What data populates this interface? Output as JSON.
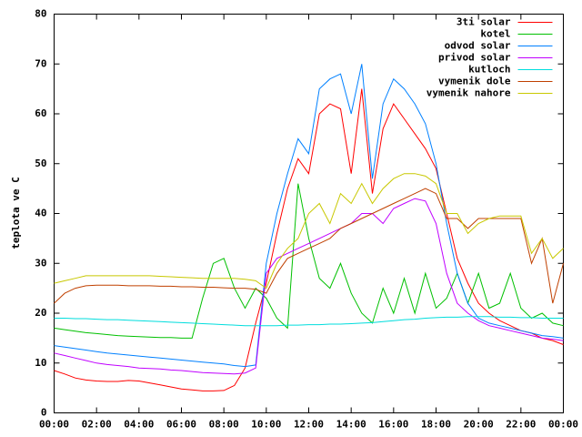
{
  "chart_data": {
    "type": "line",
    "ylabel": "teplota ve C",
    "x": [
      0,
      0.5,
      1,
      1.5,
      2,
      2.5,
      3,
      3.5,
      4,
      4.5,
      5,
      5.5,
      6,
      6.5,
      7,
      7.5,
      8,
      8.5,
      9,
      9.5,
      10,
      10.5,
      11,
      11.5,
      12,
      12.5,
      13,
      13.5,
      14,
      14.5,
      15,
      15.5,
      16,
      16.5,
      17,
      17.5,
      18,
      18.5,
      19,
      19.5,
      20,
      20.5,
      21,
      21.5,
      22,
      22.5,
      23,
      23.5,
      24
    ],
    "xlim": [
      0,
      24
    ],
    "xticks": [
      {
        "value": 0,
        "label": "00:00"
      },
      {
        "value": 2,
        "label": "02:00"
      },
      {
        "value": 4,
        "label": "04:00"
      },
      {
        "value": 6,
        "label": "06:00"
      },
      {
        "value": 8,
        "label": "08:00"
      },
      {
        "value": 10,
        "label": "10:00"
      },
      {
        "value": 12,
        "label": "12:00"
      },
      {
        "value": 14,
        "label": "14:00"
      },
      {
        "value": 16,
        "label": "16:00"
      },
      {
        "value": 18,
        "label": "18:00"
      },
      {
        "value": 20,
        "label": "20:00"
      },
      {
        "value": 22,
        "label": "22:00"
      },
      {
        "value": 24,
        "label": "00:00"
      }
    ],
    "ylim": [
      0,
      80
    ],
    "yticks": [
      0,
      10,
      20,
      30,
      40,
      50,
      60,
      70,
      80
    ],
    "legend": "top-right",
    "series": [
      {
        "name": "3ti solar",
        "color": "#ff0000",
        "values": [
          8.5,
          7.8,
          7,
          6.6,
          6.4,
          6.3,
          6.3,
          6.5,
          6.4,
          6,
          5.6,
          5.2,
          4.8,
          4.6,
          4.4,
          4.4,
          4.5,
          5.5,
          9,
          18,
          26,
          36,
          45,
          51,
          48,
          60,
          62,
          61,
          48,
          65,
          44,
          57,
          62,
          59,
          56,
          53,
          49,
          40,
          31,
          26,
          22,
          20,
          18.5,
          17.5,
          16.5,
          16,
          15,
          14.5,
          13.7
        ]
      },
      {
        "name": "kotel",
        "color": "#00c000",
        "values": [
          17,
          16.7,
          16.4,
          16.1,
          15.9,
          15.7,
          15.5,
          15.4,
          15.3,
          15.2,
          15.1,
          15.1,
          15,
          15,
          23,
          30,
          31,
          25,
          21,
          25,
          23,
          19,
          17,
          46,
          35,
          27,
          25,
          30,
          24,
          20,
          18,
          25,
          20,
          27,
          20,
          28,
          21,
          23,
          28,
          22,
          28,
          21,
          22,
          28,
          21,
          19,
          20,
          18,
          17.5
        ]
      },
      {
        "name": "odvod solar",
        "color": "#0080ff",
        "values": [
          13.5,
          13.2,
          12.9,
          12.6,
          12.3,
          12,
          11.8,
          11.6,
          11.4,
          11.2,
          11,
          10.8,
          10.6,
          10.4,
          10.2,
          10,
          9.8,
          9.5,
          9.3,
          9.6,
          30,
          40,
          48,
          55,
          52,
          65,
          67,
          68,
          60,
          70,
          47,
          62,
          67,
          65,
          62,
          58,
          50,
          38,
          28,
          22,
          19,
          18,
          17.5,
          17,
          16.5,
          16,
          15.5,
          15.3,
          15
        ]
      },
      {
        "name": "privod solar",
        "color": "#c000ff",
        "values": [
          12,
          11.5,
          11,
          10.5,
          10,
          9.7,
          9.5,
          9.3,
          9,
          8.9,
          8.8,
          8.6,
          8.5,
          8.3,
          8.1,
          8,
          7.9,
          7.8,
          8,
          9,
          28,
          31,
          32,
          33,
          34,
          35,
          36,
          37,
          38,
          40,
          40,
          38,
          41,
          42,
          43,
          42.5,
          38,
          28,
          22,
          20,
          18.5,
          17.5,
          17,
          16.5,
          16,
          15.5,
          15,
          14.8,
          14.5
        ]
      },
      {
        "name": "kutloch",
        "color": "#00dddd",
        "values": [
          19,
          19,
          18.9,
          18.9,
          18.8,
          18.7,
          18.7,
          18.6,
          18.5,
          18.4,
          18.3,
          18.2,
          18.1,
          18,
          17.9,
          17.8,
          17.7,
          17.6,
          17.5,
          17.5,
          17.5,
          17.5,
          17.6,
          17.6,
          17.7,
          17.7,
          17.8,
          17.8,
          17.9,
          18,
          18.1,
          18.3,
          18.5,
          18.7,
          18.8,
          19,
          19.1,
          19.2,
          19.2,
          19.3,
          19.3,
          19.3,
          19.2,
          19.2,
          19.1,
          19.1,
          19,
          19,
          19
        ]
      },
      {
        "name": "vymenik dole",
        "color": "#c04000",
        "values": [
          22,
          24,
          25,
          25.5,
          25.6,
          25.6,
          25.6,
          25.5,
          25.5,
          25.5,
          25.4,
          25.4,
          25.3,
          25.3,
          25.2,
          25.2,
          25.1,
          25,
          25,
          24.8,
          24,
          28,
          31,
          32,
          33,
          34,
          35,
          37,
          38,
          39,
          40,
          41,
          42,
          43,
          44,
          45,
          44,
          39,
          39,
          37,
          39,
          39,
          39,
          39,
          39,
          30,
          35,
          22,
          30
        ]
      },
      {
        "name": "vymenik nahore",
        "color": "#c8c800",
        "values": [
          26,
          26.5,
          27,
          27.5,
          27.5,
          27.5,
          27.5,
          27.5,
          27.5,
          27.5,
          27.4,
          27.3,
          27.2,
          27.1,
          27,
          27,
          27,
          27,
          26.8,
          26.5,
          25,
          30,
          33,
          35,
          40,
          42,
          38,
          44,
          42,
          46,
          42,
          45,
          47,
          48,
          48,
          47.5,
          46,
          40,
          40,
          36,
          38,
          39,
          39.5,
          39.5,
          39.5,
          32,
          35,
          31,
          33
        ]
      }
    ]
  }
}
